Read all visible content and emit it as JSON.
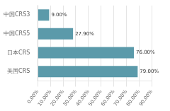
{
  "chart_data": {
    "type": "bar",
    "orientation": "horizontal",
    "categories": [
      "美国CRS",
      "日本CRS",
      "中国CRS5",
      "中国CRS3"
    ],
    "values": [
      0.79,
      0.76,
      0.279,
      0.09
    ],
    "value_labels": [
      "79.00%",
      "76.00%",
      "27.90%",
      "9.00%"
    ],
    "data_labels": true,
    "color": "#5b9aaa",
    "xlim": [
      0,
      0.9
    ],
    "xticks": [
      {
        "value": 0.0,
        "label": "0.00%"
      },
      {
        "value": 0.1,
        "label": "10.00%"
      },
      {
        "value": 0.2,
        "label": "20.00%"
      },
      {
        "value": 0.3,
        "label": "30.00%"
      },
      {
        "value": 0.4,
        "label": "40.00%"
      },
      {
        "value": 0.5,
        "label": "50.00%"
      },
      {
        "value": 0.6,
        "label": "60.00%"
      },
      {
        "value": 0.7,
        "label": "70.00%"
      },
      {
        "value": 0.8,
        "label": "80.00%"
      },
      {
        "value": 0.9,
        "label": "90.00%"
      }
    ],
    "grid": true
  }
}
